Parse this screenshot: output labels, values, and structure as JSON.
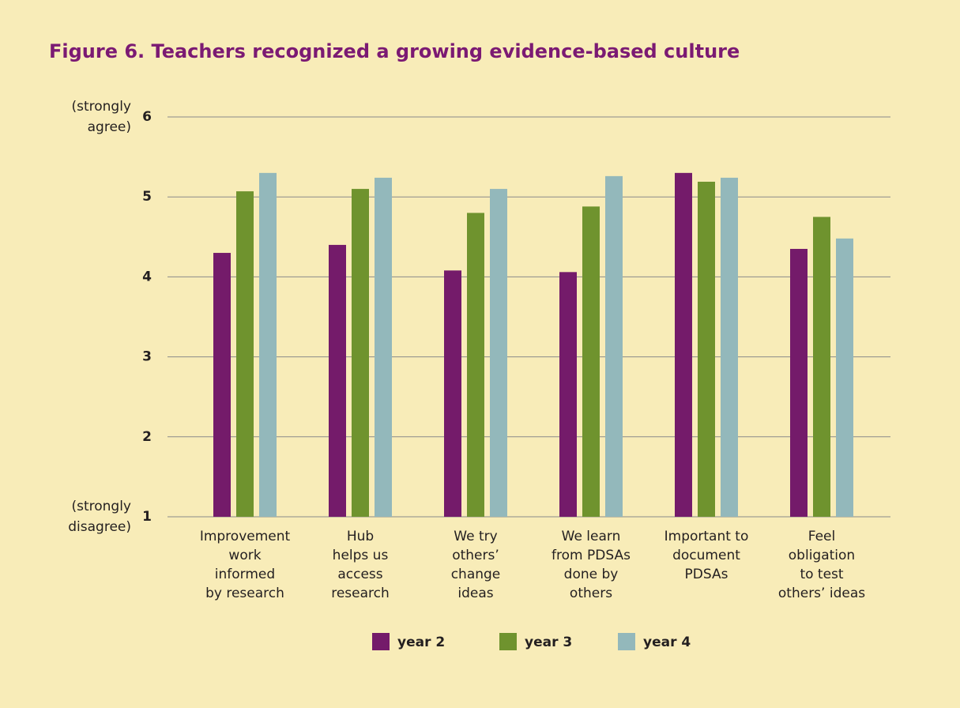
{
  "chart_data": {
    "type": "bar",
    "title": "Figure 6. Teachers recognized a growing evidence-based culture",
    "categories": [
      [
        "Improvement",
        "work",
        "informed",
        "by research"
      ],
      [
        "Hub",
        "helps us",
        "access",
        "research"
      ],
      [
        "We try",
        "others’",
        "change",
        "ideas"
      ],
      [
        "We learn",
        "from PDSAs",
        "done by",
        "others"
      ],
      [
        "Important to",
        "document",
        "PDSAs"
      ],
      [
        "Feel",
        "obligation",
        "to test",
        "others’ ideas"
      ]
    ],
    "series": [
      {
        "name": "year 2",
        "color": "#741b6a",
        "values": [
          4.3,
          4.4,
          4.08,
          4.06,
          5.3,
          4.35
        ]
      },
      {
        "name": "year 3",
        "color": "#6f932e",
        "values": [
          5.07,
          5.1,
          4.8,
          4.88,
          5.19,
          4.75
        ]
      },
      {
        "name": "year 4",
        "color": "#93b8bb",
        "values": [
          5.3,
          5.24,
          5.1,
          5.26,
          5.24,
          4.48
        ]
      }
    ],
    "ylim": [
      1,
      6
    ],
    "yticks": [
      1,
      2,
      3,
      4,
      5,
      6
    ],
    "annotations": [
      {
        "y": 6,
        "lines": [
          "(strongly",
          "agree)"
        ]
      },
      {
        "y": 1,
        "lines": [
          "(strongly",
          "disagree)"
        ]
      }
    ],
    "grid": true,
    "legend": "bottom"
  }
}
